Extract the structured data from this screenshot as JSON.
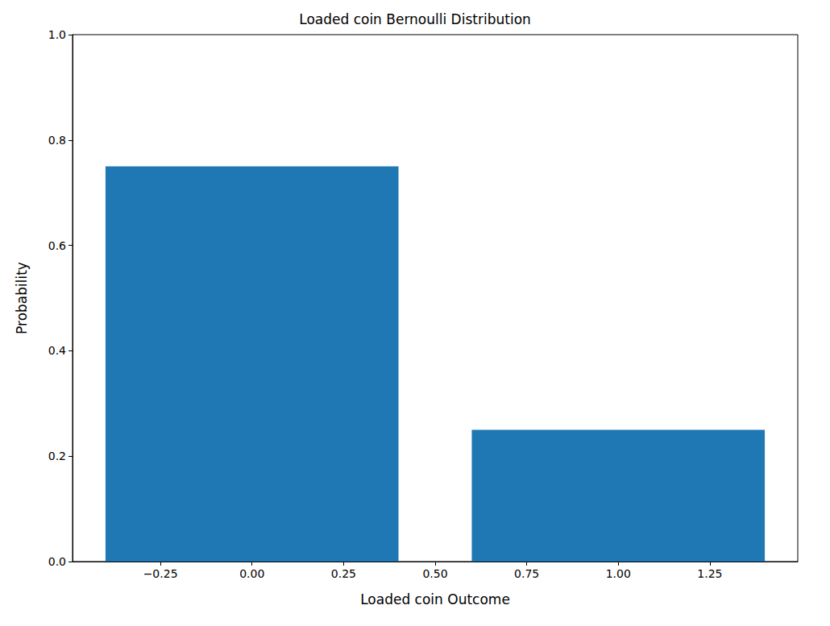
{
  "chart_data": {
    "type": "bar",
    "title": "Loaded coin Bernoulli Distribution",
    "x_label": "Loaded coin Outcome",
    "y_label": "Probability",
    "x": [
      0,
      1
    ],
    "values": [
      0.75,
      0.25
    ],
    "color": "#1f77b4",
    "xlim": [
      -0.49,
      1.49
    ],
    "xticks": [
      {
        "value": -0.25,
        "label": "−0.25"
      },
      {
        "value": 0,
        "label": "0.00"
      },
      {
        "value": 0.25,
        "label": "0.25"
      },
      {
        "value": 0.5,
        "label": "0.50"
      },
      {
        "value": 0.75,
        "label": "0.75"
      },
      {
        "value": 1,
        "label": "1.00"
      },
      {
        "value": 1.25,
        "label": "1.25"
      }
    ],
    "ylim": [
      0,
      1
    ],
    "yticks": [
      {
        "value": 0,
        "label": "0.0"
      },
      {
        "value": 0.2,
        "label": "0.2"
      },
      {
        "value": 0.4,
        "label": "0.4"
      },
      {
        "value": 0.6,
        "label": "0.6"
      },
      {
        "value": 0.8,
        "label": "0.8"
      },
      {
        "value": 1,
        "label": "1.0"
      }
    ],
    "grid": false
  }
}
